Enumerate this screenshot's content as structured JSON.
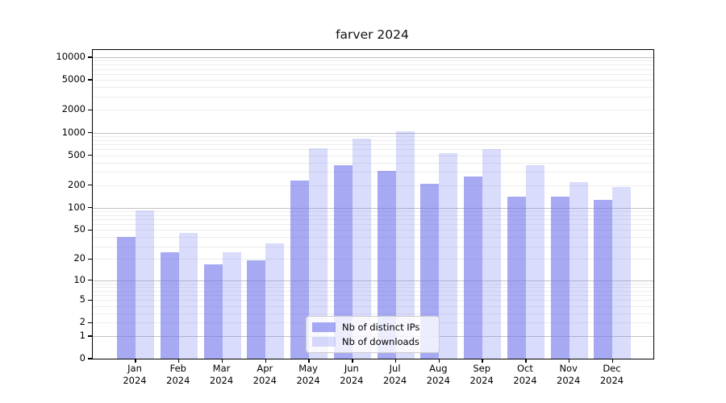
{
  "chart_data": {
    "type": "bar",
    "title": "farver 2024",
    "scale": "log1p",
    "xlabel": "",
    "ylabel": "",
    "categories": [
      "Jan",
      "Feb",
      "Mar",
      "Apr",
      "May",
      "Jun",
      "Jul",
      "Aug",
      "Sep",
      "Oct",
      "Nov",
      "Dec"
    ],
    "year_label": "2024",
    "series": [
      {
        "name": "Nb of distinct IPs",
        "color": "rgba(108,113,235,0.6)",
        "values": [
          40,
          25,
          17,
          19,
          230,
          370,
          310,
          210,
          260,
          140,
          142,
          127
        ]
      },
      {
        "name": "Nb of downloads",
        "color": "rgba(130,140,240,0.3)",
        "values": [
          92,
          46,
          25,
          33,
          620,
          840,
          1050,
          530,
          600,
          365,
          220,
          188
        ]
      }
    ],
    "yticks": [
      0,
      1,
      2,
      5,
      10,
      20,
      50,
      100,
      200,
      500,
      1000,
      2000,
      5000,
      10000
    ],
    "ylim": [
      0,
      12500
    ],
    "grid": {
      "show": true,
      "minor_color": "#ececec",
      "major_color": "#c2c2c2"
    },
    "legend_position": "lower center",
    "axis_color": "#000000",
    "background_color": "#ffffff"
  }
}
